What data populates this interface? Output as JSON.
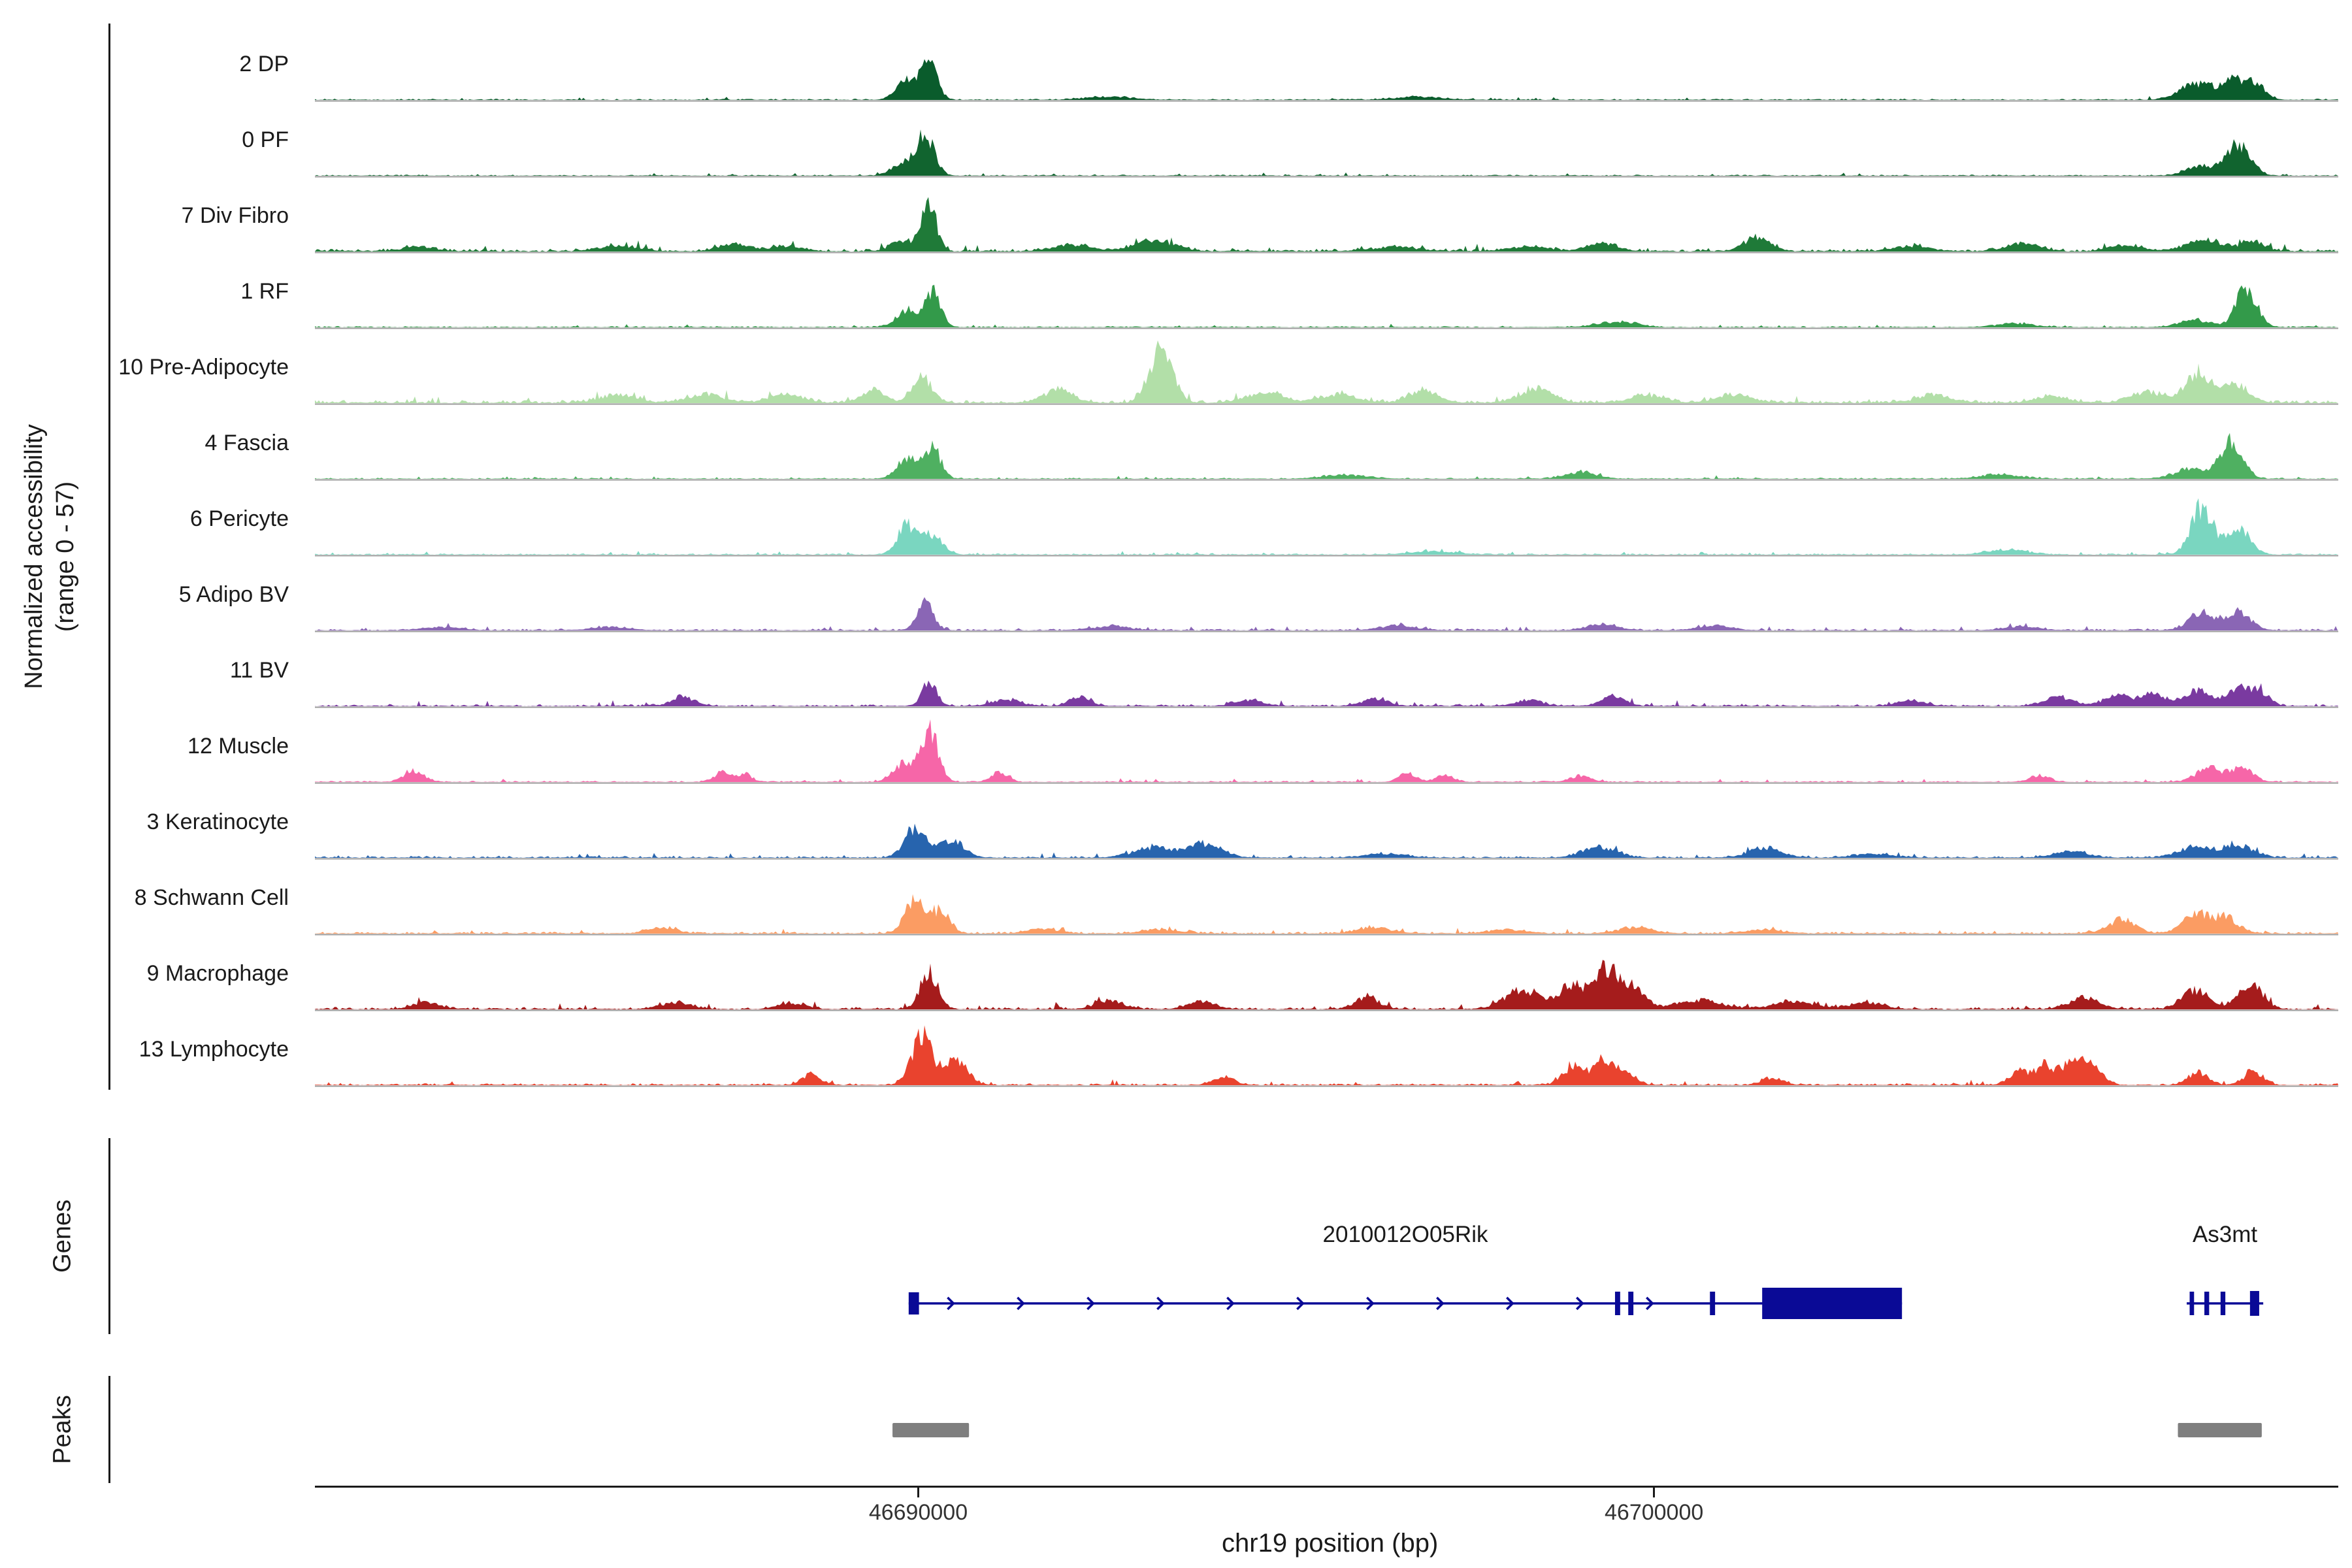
{
  "figure": {
    "y_axis_label_line1": "Normalized accessibility",
    "y_axis_label_line2": "(range 0 - 57)",
    "genes_section_label": "Genes",
    "peaks_section_label": "Peaks"
  },
  "chart_data": {
    "type": "area",
    "title": "",
    "x_axis": {
      "label": "chr19 position (bp)",
      "start": 46681800,
      "end": 46709300,
      "ticks": [
        46690000,
        46700000
      ],
      "tick_labels": [
        "46690000",
        "46700000"
      ]
    },
    "y_axis": {
      "label": "Normalized accessibility (range 0 - 57)",
      "range": [
        0,
        57
      ]
    },
    "colors": {
      "gene": "#0a0a96",
      "peak": "#7f7f7f",
      "baseline": "#9b9b9b",
      "axis": "#1a1a1a"
    },
    "tracks": [
      {
        "label": "2 DP",
        "color": "#0a5c2c",
        "noise": 0.02,
        "peaks": [
          [
            46689850,
            0.3,
            140
          ],
          [
            46690150,
            0.52,
            110
          ],
          [
            46692600,
            0.05,
            300
          ],
          [
            46696800,
            0.05,
            300
          ],
          [
            46707350,
            0.25,
            220
          ],
          [
            46707900,
            0.3,
            190
          ],
          [
            46708200,
            0.18,
            120
          ]
        ]
      },
      {
        "label": "0 PF",
        "color": "#11642f",
        "noise": 0.018,
        "peaks": [
          [
            46689800,
            0.2,
            150
          ],
          [
            46690100,
            0.62,
            120
          ],
          [
            46707450,
            0.15,
            200
          ],
          [
            46707950,
            0.5,
            160
          ]
        ]
      },
      {
        "label": "7 Div Fibro",
        "color": "#1f7a38",
        "noise": 0.045,
        "peaks": [
          [
            46683200,
            0.07,
            200
          ],
          [
            46685900,
            0.08,
            250
          ],
          [
            46687500,
            0.12,
            200
          ],
          [
            46688200,
            0.08,
            200
          ],
          [
            46689800,
            0.18,
            150
          ],
          [
            46690150,
            0.72,
            100
          ],
          [
            46692100,
            0.1,
            250
          ],
          [
            46693200,
            0.16,
            280
          ],
          [
            46696500,
            0.07,
            300
          ],
          [
            46698300,
            0.08,
            250
          ],
          [
            46699300,
            0.12,
            200
          ],
          [
            46701400,
            0.22,
            180
          ],
          [
            46703500,
            0.08,
            250
          ],
          [
            46705000,
            0.13,
            220
          ],
          [
            46706400,
            0.1,
            200
          ],
          [
            46707500,
            0.18,
            250
          ],
          [
            46708150,
            0.16,
            150
          ]
        ]
      },
      {
        "label": "1 RF",
        "color": "#339a4a",
        "noise": 0.02,
        "peaks": [
          [
            46689850,
            0.28,
            140
          ],
          [
            46690200,
            0.55,
            110
          ],
          [
            46699500,
            0.09,
            250
          ],
          [
            46704900,
            0.06,
            250
          ],
          [
            46707350,
            0.12,
            200
          ],
          [
            46708050,
            0.62,
            140
          ]
        ]
      },
      {
        "label": "10 Pre-Adipocyte",
        "color": "#b2dfa8",
        "noise": 0.05,
        "peaks": [
          [
            46685900,
            0.12,
            250
          ],
          [
            46687100,
            0.14,
            220
          ],
          [
            46688200,
            0.14,
            220
          ],
          [
            46689400,
            0.2,
            150
          ],
          [
            46690050,
            0.42,
            130
          ],
          [
            46691900,
            0.2,
            200
          ],
          [
            46693300,
            0.9,
            150
          ],
          [
            46694700,
            0.16,
            220
          ],
          [
            46695700,
            0.13,
            260
          ],
          [
            46696850,
            0.2,
            180
          ],
          [
            46698400,
            0.22,
            220
          ],
          [
            46699900,
            0.12,
            220
          ],
          [
            46701100,
            0.13,
            220
          ],
          [
            46703800,
            0.13,
            220
          ],
          [
            46705400,
            0.1,
            220
          ],
          [
            46706700,
            0.16,
            220
          ],
          [
            46707400,
            0.48,
            170
          ],
          [
            46707900,
            0.28,
            160
          ]
        ]
      },
      {
        "label": "4 Fascia",
        "color": "#4fb061",
        "noise": 0.02,
        "peaks": [
          [
            46689850,
            0.32,
            140
          ],
          [
            46690200,
            0.48,
            110
          ],
          [
            46695800,
            0.06,
            300
          ],
          [
            46699000,
            0.1,
            220
          ],
          [
            46704700,
            0.07,
            250
          ],
          [
            46707300,
            0.16,
            220
          ],
          [
            46707850,
            0.58,
            150
          ]
        ]
      },
      {
        "label": "6 Pericyte",
        "color": "#7ad6c0",
        "noise": 0.02,
        "peaks": [
          [
            46689850,
            0.48,
            130
          ],
          [
            46690200,
            0.3,
            130
          ],
          [
            46697000,
            0.05,
            300
          ],
          [
            46704800,
            0.08,
            250
          ],
          [
            46707450,
            0.75,
            150
          ],
          [
            46707950,
            0.42,
            150
          ]
        ]
      },
      {
        "label": "5 Adipo BV",
        "color": "#8a66b5",
        "noise": 0.028,
        "peaks": [
          [
            46683500,
            0.05,
            250
          ],
          [
            46685800,
            0.05,
            250
          ],
          [
            46690100,
            0.42,
            110
          ],
          [
            46692600,
            0.06,
            250
          ],
          [
            46696500,
            0.07,
            250
          ],
          [
            46699300,
            0.1,
            200
          ],
          [
            46700800,
            0.07,
            220
          ],
          [
            46705000,
            0.06,
            220
          ],
          [
            46707450,
            0.28,
            180
          ],
          [
            46707950,
            0.3,
            160
          ]
        ]
      },
      {
        "label": "11 BV",
        "color": "#7a3aa0",
        "noise": 0.032,
        "peaks": [
          [
            46686800,
            0.14,
            160
          ],
          [
            46690150,
            0.38,
            100
          ],
          [
            46691200,
            0.1,
            180
          ],
          [
            46692200,
            0.15,
            140
          ],
          [
            46694500,
            0.1,
            180
          ],
          [
            46696200,
            0.11,
            180
          ],
          [
            46698300,
            0.1,
            180
          ],
          [
            46699450,
            0.15,
            160
          ],
          [
            46703500,
            0.09,
            180
          ],
          [
            46705500,
            0.14,
            200
          ],
          [
            46706300,
            0.16,
            180
          ],
          [
            46706800,
            0.2,
            160
          ],
          [
            46707400,
            0.26,
            170
          ],
          [
            46707950,
            0.3,
            160
          ],
          [
            46708250,
            0.2,
            120
          ]
        ]
      },
      {
        "label": "12 Muscle",
        "color": "#f666a8",
        "noise": 0.02,
        "peaks": [
          [
            46683150,
            0.18,
            130
          ],
          [
            46687350,
            0.16,
            110
          ],
          [
            46687650,
            0.12,
            90
          ],
          [
            46689800,
            0.3,
            140
          ],
          [
            46690150,
            0.82,
            120
          ],
          [
            46691100,
            0.16,
            110
          ],
          [
            46696650,
            0.15,
            110
          ],
          [
            46697150,
            0.12,
            110
          ],
          [
            46699000,
            0.1,
            130
          ],
          [
            46705250,
            0.1,
            130
          ],
          [
            46707550,
            0.24,
            170
          ],
          [
            46708000,
            0.22,
            140
          ]
        ]
      },
      {
        "label": "3 Keratinocyte",
        "color": "#2764ae",
        "noise": 0.03,
        "peaks": [
          [
            46689950,
            0.46,
            140
          ],
          [
            46690450,
            0.28,
            170
          ],
          [
            46693200,
            0.16,
            260
          ],
          [
            46693900,
            0.22,
            220
          ],
          [
            46696300,
            0.06,
            260
          ],
          [
            46699250,
            0.18,
            220
          ],
          [
            46701500,
            0.15,
            220
          ],
          [
            46703000,
            0.06,
            250
          ],
          [
            46705650,
            0.1,
            220
          ],
          [
            46707350,
            0.17,
            220
          ],
          [
            46707950,
            0.2,
            200
          ]
        ]
      },
      {
        "label": "8 Schwann Cell",
        "color": "#fb9c63",
        "noise": 0.03,
        "peaks": [
          [
            46686500,
            0.1,
            180
          ],
          [
            46689950,
            0.55,
            130
          ],
          [
            46690300,
            0.35,
            130
          ],
          [
            46691700,
            0.08,
            200
          ],
          [
            46693300,
            0.06,
            250
          ],
          [
            46696200,
            0.1,
            220
          ],
          [
            46698000,
            0.06,
            250
          ],
          [
            46699750,
            0.1,
            220
          ],
          [
            46701500,
            0.06,
            250
          ],
          [
            46706350,
            0.22,
            180
          ],
          [
            46707400,
            0.3,
            200
          ],
          [
            46707800,
            0.22,
            150
          ]
        ]
      },
      {
        "label": "9 Macrophage",
        "color": "#a51c1c",
        "noise": 0.04,
        "peaks": [
          [
            46683300,
            0.1,
            180
          ],
          [
            46686700,
            0.1,
            200
          ],
          [
            46688300,
            0.1,
            180
          ],
          [
            46690150,
            0.58,
            120
          ],
          [
            46692600,
            0.14,
            180
          ],
          [
            46693850,
            0.12,
            180
          ],
          [
            46696100,
            0.18,
            160
          ],
          [
            46698200,
            0.32,
            220
          ],
          [
            46698900,
            0.4,
            180
          ],
          [
            46699350,
            0.62,
            140
          ],
          [
            46699700,
            0.35,
            160
          ],
          [
            46700600,
            0.14,
            300
          ],
          [
            46701900,
            0.12,
            280
          ],
          [
            46702900,
            0.1,
            220
          ],
          [
            46705850,
            0.18,
            200
          ],
          [
            46707350,
            0.3,
            180
          ],
          [
            46708100,
            0.4,
            160
          ]
        ]
      },
      {
        "label": "13 Lymphocyte",
        "color": "#e9432e",
        "noise": 0.03,
        "peaks": [
          [
            46688550,
            0.16,
            130
          ],
          [
            46690050,
            0.75,
            140
          ],
          [
            46690500,
            0.4,
            160
          ],
          [
            46694150,
            0.13,
            130
          ],
          [
            46698900,
            0.3,
            140
          ],
          [
            46699300,
            0.38,
            140
          ],
          [
            46699600,
            0.2,
            130
          ],
          [
            46701600,
            0.12,
            130
          ],
          [
            46704950,
            0.22,
            130
          ],
          [
            46705300,
            0.3,
            130
          ],
          [
            46705700,
            0.42,
            150
          ],
          [
            46706000,
            0.25,
            120
          ],
          [
            46707400,
            0.2,
            130
          ],
          [
            46708150,
            0.22,
            130
          ]
        ]
      }
    ],
    "genes": [
      {
        "name": "2010012O05Rik",
        "start": 46689870,
        "end": 46703370,
        "strand": "+",
        "exons": [
          [
            46689870,
            46690010,
            34
          ],
          [
            46699470,
            46699540,
            36
          ],
          [
            46699650,
            46699720,
            36
          ],
          [
            46700760,
            46700830,
            36
          ],
          [
            46701470,
            46703370,
            48
          ]
        ]
      },
      {
        "name": "As3mt",
        "start": 46707240,
        "end": 46708280,
        "strand": "+",
        "exons": [
          [
            46707280,
            46707340,
            36
          ],
          [
            46707480,
            46707545,
            36
          ],
          [
            46707700,
            46707765,
            36
          ],
          [
            46708100,
            46708225,
            38
          ]
        ]
      }
    ],
    "peak_regions": [
      [
        46689650,
        46690690
      ],
      [
        46707120,
        46708260
      ]
    ]
  }
}
